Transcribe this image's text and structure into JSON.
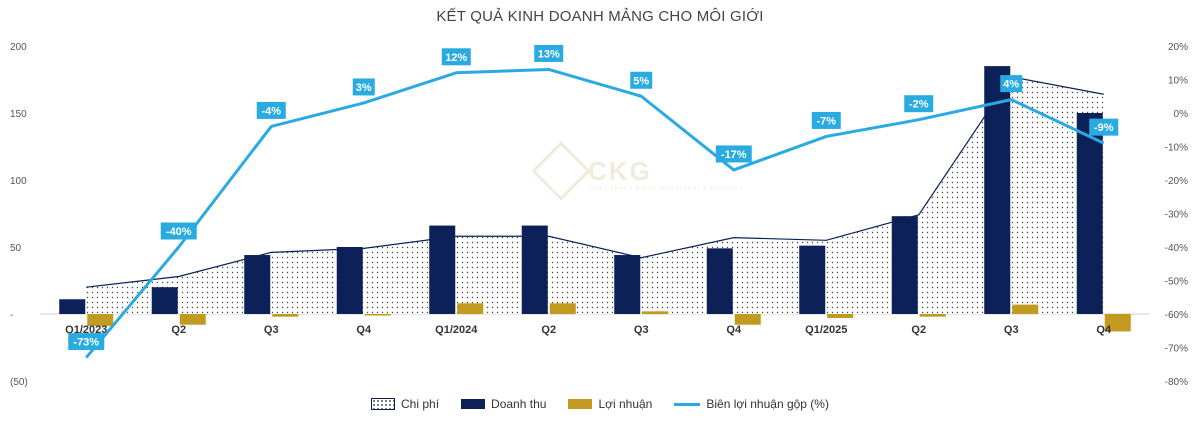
{
  "watermark": {
    "text": "CKG",
    "subtext": "CHAU KHANH GIANG INVESTMENT & ADVISORY"
  },
  "legend": {
    "cost": "Chi phí",
    "revenue": "Doanh thu",
    "profit": "Lợi nhuận",
    "margin": "Biên lợi nhuận gộp (%)"
  },
  "colors": {
    "revenue": "#0b2158",
    "profit": "#c19a1f",
    "margin": "#29abe2",
    "cost_outline": "#0b2158"
  },
  "chart_data": {
    "type": "bar",
    "title": "KẾT QUẢ KINH DOANH MẢNG CHO MÔI GIỚI",
    "categories": [
      "Q1/2023",
      "Q2",
      "Q3",
      "Q4",
      "Q1/2024",
      "Q2",
      "Q3",
      "Q4",
      "Q1/2025",
      "Q2",
      "Q3",
      "Q4"
    ],
    "y_left": {
      "ylim": [
        -50,
        200
      ],
      "ticks": [
        -50,
        0,
        50,
        100,
        150,
        200
      ],
      "tick_labels": [
        "(50)",
        "-",
        "50",
        "100",
        "150",
        "200"
      ]
    },
    "y_right": {
      "ylim": [
        -80,
        20
      ],
      "ticks": [
        -80,
        -70,
        -60,
        -50,
        -40,
        -30,
        -20,
        -10,
        0,
        10,
        20
      ],
      "tick_labels": [
        "-80%",
        "-70%",
        "-60%",
        "-50%",
        "-40%",
        "-30%",
        "-20%",
        "-10%",
        "0%",
        "10%",
        "20%"
      ]
    },
    "legend_position": "bottom",
    "series": [
      {
        "name": "Chi phí",
        "type": "area",
        "axis": "left",
        "values": [
          20,
          28,
          46,
          49,
          58,
          58,
          42,
          57,
          55,
          74,
          177,
          164
        ]
      },
      {
        "name": "Doanh thu",
        "type": "bar",
        "axis": "left",
        "values": [
          11,
          20,
          44,
          50,
          66,
          66,
          44,
          49,
          51,
          73,
          185,
          150
        ]
      },
      {
        "name": "Lợi nhuận",
        "type": "bar",
        "axis": "left",
        "values": [
          -9,
          -8,
          -2,
          -1,
          8,
          8,
          2,
          -8,
          -3,
          -2,
          7,
          -13
        ]
      },
      {
        "name": "Biên lợi nhuận gộp (%)",
        "type": "line",
        "axis": "right",
        "values": [
          -73,
          -40,
          -4,
          3,
          12,
          13,
          5,
          -17,
          -7,
          -2,
          4,
          -9
        ],
        "labels": [
          "-73%",
          "-40%",
          "-4%",
          "3%",
          "12%",
          "13%",
          "5%",
          "-17%",
          "-7%",
          "-2%",
          "4%",
          "-9%"
        ]
      }
    ]
  }
}
